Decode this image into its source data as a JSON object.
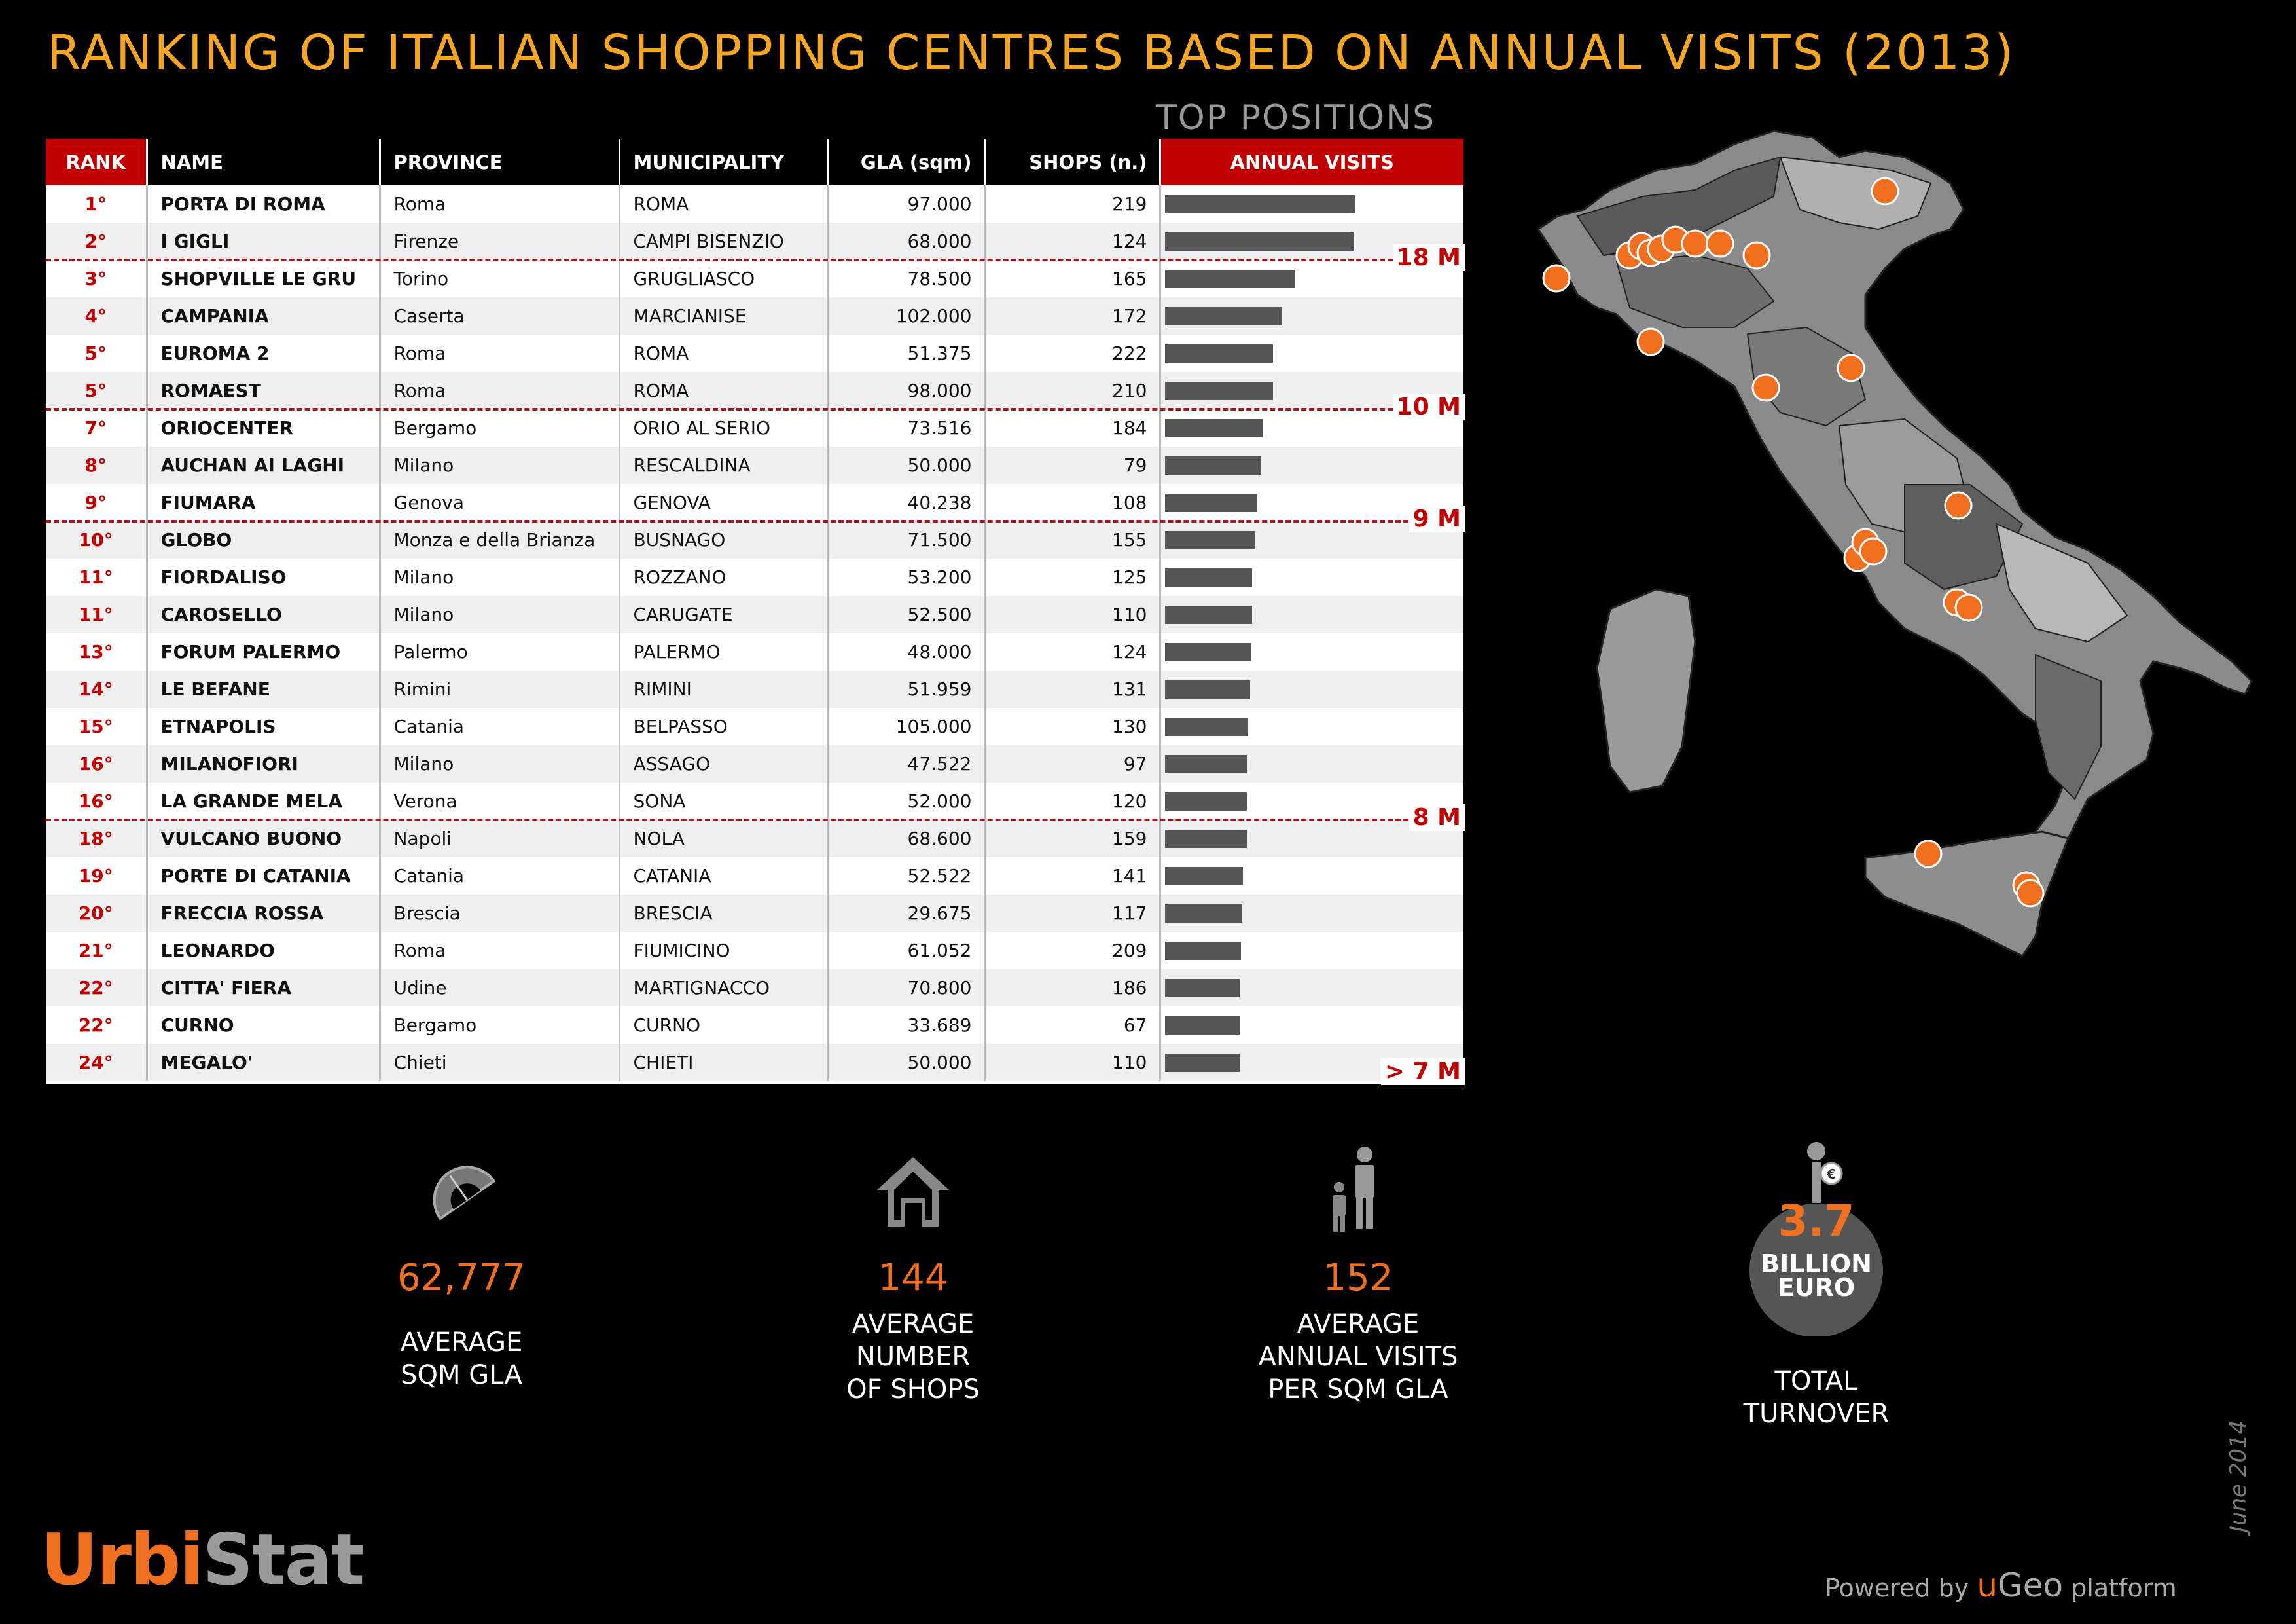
{
  "title": "RANKING OF ITALIAN SHOPPING CENTRES BASED ON ANNUAL VISITS (2013)",
  "subtitle": "TOP POSITIONS",
  "chart_data": {
    "type": "table",
    "columns": [
      "RANK",
      "NAME",
      "PROVINCE",
      "MUNICIPALITY",
      "GLA (sqm)",
      "SHOPS (n.)",
      "ANNUAL VISITS"
    ],
    "rows": [
      {
        "rank": "1°",
        "name": "PORTA DI ROMA",
        "province": "Roma",
        "municipality": "ROMA",
        "gla": "97.000",
        "shops": "219",
        "visits_bar": 18.5
      },
      {
        "rank": "2°",
        "name": "I GIGLI",
        "province": "Firenze",
        "municipality": "CAMPI BISENZIO",
        "gla": "68.000",
        "shops": "124",
        "visits_bar": 18.4
      },
      {
        "rank": "3°",
        "name": "SHOPVILLE LE GRU",
        "province": "Torino",
        "municipality": "GRUGLIASCO",
        "gla": "78.500",
        "shops": "165",
        "visits_bar": 12.6
      },
      {
        "rank": "4°",
        "name": "CAMPANIA",
        "province": "Caserta",
        "municipality": "MARCIANISE",
        "gla": "102.000",
        "shops": "172",
        "visits_bar": 11.4
      },
      {
        "rank": "5°",
        "name": "EUROMA 2",
        "province": "Roma",
        "municipality": "ROMA",
        "gla": "51.375",
        "shops": "222",
        "visits_bar": 10.5
      },
      {
        "rank": "5°",
        "name": "ROMAEST",
        "province": "Roma",
        "municipality": "ROMA",
        "gla": "98.000",
        "shops": "210",
        "visits_bar": 10.5
      },
      {
        "rank": "7°",
        "name": "ORIOCENTER",
        "province": "Bergamo",
        "municipality": "ORIO AL SERIO",
        "gla": "73.516",
        "shops": "184",
        "visits_bar": 9.5
      },
      {
        "rank": "8°",
        "name": "AUCHAN AI LAGHI",
        "province": "Milano",
        "municipality": "RESCALDINA",
        "gla": "50.000",
        "shops": "79",
        "visits_bar": 9.4
      },
      {
        "rank": "9°",
        "name": "FIUMARA",
        "province": "Genova",
        "municipality": "GENOVA",
        "gla": "40.238",
        "shops": "108",
        "visits_bar": 9.0
      },
      {
        "rank": "10°",
        "name": "GLOBO",
        "province": "Monza e della Brianza",
        "municipality": "BUSNAGO",
        "gla": "71.500",
        "shops": "155",
        "visits_bar": 8.8
      },
      {
        "rank": "11°",
        "name": "FIORDALISO",
        "province": "Milano",
        "municipality": "ROZZANO",
        "gla": "53.200",
        "shops": "125",
        "visits_bar": 8.5
      },
      {
        "rank": "11°",
        "name": "CAROSELLO",
        "province": "Milano",
        "municipality": "CARUGATE",
        "gla": "52.500",
        "shops": "110",
        "visits_bar": 8.5
      },
      {
        "rank": "13°",
        "name": "FORUM PALERMO",
        "province": "Palermo",
        "municipality": "PALERMO",
        "gla": "48.000",
        "shops": "124",
        "visits_bar": 8.4
      },
      {
        "rank": "14°",
        "name": "LE BEFANE",
        "province": "Rimini",
        "municipality": "RIMINI",
        "gla": "51.959",
        "shops": "131",
        "visits_bar": 8.3
      },
      {
        "rank": "15°",
        "name": "ETNAPOLIS",
        "province": "Catania",
        "municipality": "BELPASSO",
        "gla": "105.000",
        "shops": "130",
        "visits_bar": 8.1
      },
      {
        "rank": "16°",
        "name": "MILANOFIORI",
        "province": "Milano",
        "municipality": "ASSAGO",
        "gla": "47.522",
        "shops": "97",
        "visits_bar": 8.0
      },
      {
        "rank": "16°",
        "name": "LA GRANDE MELA",
        "province": "Verona",
        "municipality": "SONA",
        "gla": "52.000",
        "shops": "120",
        "visits_bar": 8.0
      },
      {
        "rank": "18°",
        "name": "VULCANO BUONO",
        "province": "Napoli",
        "municipality": "NOLA",
        "gla": "68.600",
        "shops": "159",
        "visits_bar": 8.0
      },
      {
        "rank": "19°",
        "name": "PORTE DI CATANIA",
        "province": "Catania",
        "municipality": "CATANIA",
        "gla": "52.522",
        "shops": "141",
        "visits_bar": 7.6
      },
      {
        "rank": "20°",
        "name": "FRECCIA ROSSA",
        "province": "Brescia",
        "municipality": "BRESCIA",
        "gla": "29.675",
        "shops": "117",
        "visits_bar": 7.5
      },
      {
        "rank": "21°",
        "name": "LEONARDO",
        "province": "Roma",
        "municipality": "FIUMICINO",
        "gla": "61.052",
        "shops": "209",
        "visits_bar": 7.4
      },
      {
        "rank": "22°",
        "name": "CITTA' FIERA",
        "province": "Udine",
        "municipality": "MARTIGNACCO",
        "gla": "70.800",
        "shops": "186",
        "visits_bar": 7.3
      },
      {
        "rank": "22°",
        "name": "CURNO",
        "province": "Bergamo",
        "municipality": "CURNO",
        "gla": "33.689",
        "shops": "67",
        "visits_bar": 7.3
      },
      {
        "rank": "24°",
        "name": "MEGALO'",
        "province": "Chieti",
        "municipality": "CHIETI",
        "gla": "50.000",
        "shops": "110",
        "visits_bar": 7.3
      }
    ],
    "bar_max": 18.5,
    "thresholds": [
      {
        "label": "18 M",
        "after_row": 2
      },
      {
        "label": "10 M",
        "after_row": 6
      },
      {
        "label": "9 M",
        "after_row": 9
      },
      {
        "label": "8 M",
        "after_row": 17
      }
    ],
    "last_label": "> 7 M"
  },
  "kpis": [
    {
      "value": "62,777",
      "label_lines": [
        "AVERAGE",
        "SQM GLA"
      ],
      "icon": "protractor-icon"
    },
    {
      "value": "144",
      "label_lines": [
        "AVERAGE",
        "NUMBER",
        "OF SHOPS"
      ],
      "icon": "house-icon"
    },
    {
      "value": "152",
      "label_lines": [
        "AVERAGE",
        "ANNUAL VISITS",
        "PER SQM GLA"
      ],
      "icon": "people-icon"
    },
    {
      "value": "3.7",
      "badge_lines": [
        "BILLION",
        "EURO"
      ],
      "label_lines": [
        "TOTAL",
        "TURNOVER"
      ],
      "icon": "money-bag-icon"
    }
  ],
  "brand": {
    "urbi": "Urbi",
    "stat": "Stat"
  },
  "powered": {
    "prefix": "Powered by",
    "u": "u",
    "geo": "Geo",
    "suffix": "platform"
  },
  "date": "June 2014",
  "colors": {
    "title": "#f5a623",
    "accent_red": "#c00000",
    "orange": "#f07020",
    "bar": "#555555"
  }
}
